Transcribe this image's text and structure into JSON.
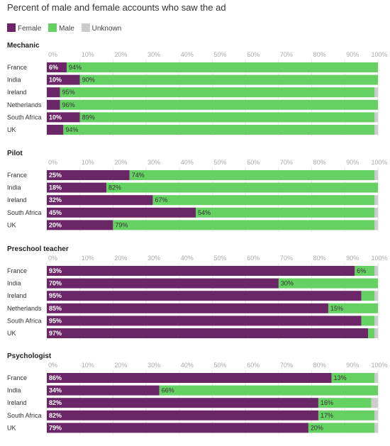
{
  "title": "Percent of male and female accounts who saw the ad",
  "legend": [
    {
      "label": "Female",
      "color": "#6b2668"
    },
    {
      "label": "Male",
      "color": "#64d162"
    },
    {
      "label": "Unknown",
      "color": "#cccccc"
    }
  ],
  "chart_data": [
    {
      "type": "bar",
      "stacked": true,
      "orientation": "horizontal",
      "title": "Mechanic",
      "xlim": [
        0,
        100
      ],
      "xticks": [
        "0%",
        "10%",
        "20%",
        "30%",
        "40%",
        "50%",
        "60%",
        "70%",
        "80%",
        "90%",
        "100%"
      ],
      "categories": [
        "France",
        "India",
        "Ireland",
        "Netherlands",
        "South Africa",
        "UK"
      ],
      "series": [
        {
          "name": "Female",
          "values": [
            6,
            10,
            4,
            4,
            10,
            5
          ],
          "labels": [
            "6%",
            "10%",
            "",
            "",
            "10%",
            ""
          ]
        },
        {
          "name": "Male",
          "values": [
            94,
            90,
            95,
            96,
            89,
            94
          ],
          "labels": [
            "94%",
            "90%",
            "95%",
            "96%",
            "89%",
            "94%"
          ]
        },
        {
          "name": "Unknown",
          "values": [
            0,
            0,
            1,
            0,
            1,
            1
          ]
        }
      ]
    },
    {
      "type": "bar",
      "stacked": true,
      "orientation": "horizontal",
      "title": "Pilot",
      "xlim": [
        0,
        100
      ],
      "xticks": [
        "0%",
        "10%",
        "20%",
        "30%",
        "40%",
        "50%",
        "60%",
        "70%",
        "80%",
        "90%",
        "100%"
      ],
      "categories": [
        "France",
        "India",
        "Ireland",
        "South Africa",
        "UK"
      ],
      "series": [
        {
          "name": "Female",
          "values": [
            25,
            18,
            32,
            45,
            20
          ],
          "labels": [
            "25%",
            "18%",
            "32%",
            "45%",
            "20%"
          ]
        },
        {
          "name": "Male",
          "values": [
            74,
            82,
            67,
            54,
            79
          ],
          "labels": [
            "74%",
            "82%",
            "67%",
            "54%",
            "79%"
          ]
        },
        {
          "name": "Unknown",
          "values": [
            1,
            0,
            1,
            1,
            1
          ]
        }
      ]
    },
    {
      "type": "bar",
      "stacked": true,
      "orientation": "horizontal",
      "title": "Preschool teacher",
      "xlim": [
        0,
        100
      ],
      "xticks": [
        "0%",
        "10%",
        "20%",
        "30%",
        "40%",
        "50%",
        "60%",
        "70%",
        "80%",
        "90%",
        "100%"
      ],
      "categories": [
        "France",
        "India",
        "Ireland",
        "Netherlands",
        "South Africa",
        "UK"
      ],
      "series": [
        {
          "name": "Female",
          "values": [
            93,
            70,
            95,
            85,
            95,
            97
          ],
          "labels": [
            "93%",
            "70%",
            "95%",
            "85%",
            "95%",
            "97%"
          ]
        },
        {
          "name": "Male",
          "values": [
            6,
            30,
            4,
            15,
            4,
            2
          ],
          "labels": [
            "6%",
            "30%",
            "",
            "15%",
            "",
            ""
          ]
        },
        {
          "name": "Unknown",
          "values": [
            1,
            0,
            1,
            0,
            1,
            1
          ]
        }
      ]
    },
    {
      "type": "bar",
      "stacked": true,
      "orientation": "horizontal",
      "title": "Psychologist",
      "xlim": [
        0,
        100
      ],
      "xticks": [
        "0%",
        "10%",
        "20%",
        "30%",
        "40%",
        "50%",
        "60%",
        "70%",
        "80%",
        "90%",
        "100%"
      ],
      "categories": [
        "France",
        "India",
        "Ireland",
        "South Africa",
        "UK"
      ],
      "series": [
        {
          "name": "Female",
          "values": [
            86,
            34,
            82,
            82,
            79
          ],
          "labels": [
            "86%",
            "34%",
            "82%",
            "82%",
            "79%"
          ]
        },
        {
          "name": "Male",
          "values": [
            13,
            66,
            16,
            17,
            20
          ],
          "labels": [
            "13%",
            "66%",
            "16%",
            "17%",
            "20%"
          ]
        },
        {
          "name": "Unknown",
          "values": [
            1,
            0,
            2,
            1,
            1
          ]
        }
      ]
    }
  ]
}
